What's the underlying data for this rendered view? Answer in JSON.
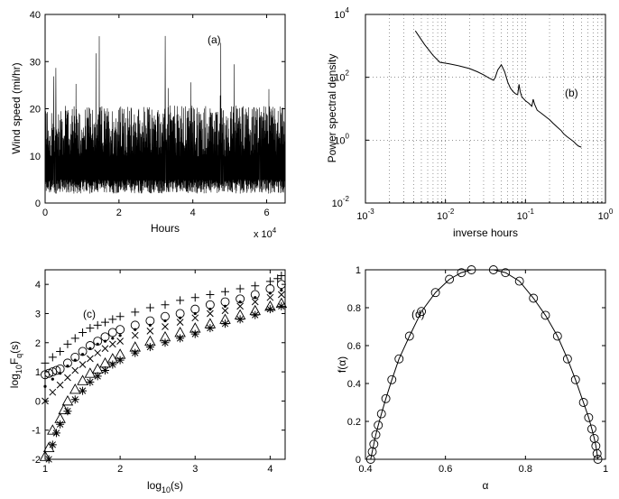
{
  "chart_data": [
    {
      "type": "line",
      "panel_label": "(a)",
      "xlabel": "Hours",
      "ylabel": "Wind speed (mi/hr)",
      "xlim": [
        0,
        6.5
      ],
      "ylim": [
        0,
        40
      ],
      "x_ticks": [
        0,
        2,
        4,
        6
      ],
      "y_ticks": [
        0,
        10,
        20,
        30,
        40
      ],
      "x_multiplier_base": "x 10",
      "x_multiplier_exp": "4",
      "grid": false,
      "color": "#000000",
      "description_values": {
        "typical_low": 2,
        "typical_high": 18,
        "peak": 36
      }
    },
    {
      "type": "line",
      "panel_label": "(b)",
      "xlabel": "inverse hours",
      "ylabel": "Power spectral density",
      "xscale": "log",
      "yscale": "log",
      "xlim": [
        0.001,
        1
      ],
      "ylim": [
        0.01,
        10000
      ],
      "x_ticks": [
        {
          "base": "10",
          "exp": "-3"
        },
        {
          "base": "10",
          "exp": "-2"
        },
        {
          "base": "10",
          "exp": "-1"
        },
        {
          "base": "10",
          "exp": "0"
        }
      ],
      "y_ticks": [
        {
          "base": "10",
          "exp": "-2"
        },
        {
          "base": "10",
          "exp": "0"
        },
        {
          "base": "10",
          "exp": "2"
        },
        {
          "base": "10",
          "exp": "4"
        }
      ],
      "grid": true,
      "color": "#000000",
      "series": [
        {
          "x": [
            0.0042,
            0.0055,
            0.007,
            0.0085,
            0.011,
            0.015,
            0.02,
            0.025,
            0.03,
            0.035,
            0.04,
            0.042,
            0.045,
            0.05,
            0.055,
            0.06,
            0.065,
            0.07,
            0.075,
            0.08,
            0.083,
            0.086,
            0.09,
            0.1,
            0.11,
            0.12,
            0.125,
            0.13,
            0.14,
            0.16,
            0.18,
            0.2,
            0.22,
            0.25,
            0.28,
            0.3,
            0.33,
            0.36,
            0.4,
            0.43,
            0.46,
            0.5
          ],
          "y": [
            3000,
            1100,
            500,
            300,
            270,
            230,
            190,
            150,
            120,
            95,
            80,
            100,
            170,
            250,
            150,
            70,
            45,
            35,
            30,
            28,
            60,
            35,
            24,
            18,
            15,
            12,
            20,
            14,
            9,
            7,
            5.5,
            4.5,
            3.5,
            2.6,
            2.0,
            1.6,
            1.3,
            1.1,
            0.9,
            0.75,
            0.65,
            0.6
          ]
        }
      ]
    },
    {
      "type": "scatter",
      "panel_label": "(c)",
      "xlabel_base": "log",
      "xlabel_sub": "10",
      "xlabel_rest": "(s)",
      "ylabel_base": "log",
      "ylabel_sub": "10",
      "ylabel_mid": "F",
      "ylabel_sub2": "q",
      "ylabel_rest": "(s)",
      "xlim": [
        1,
        4.2
      ],
      "ylim": [
        -2,
        4.5
      ],
      "x_ticks": [
        1,
        2,
        3,
        4
      ],
      "y_ticks": [
        -2,
        -1,
        0,
        1,
        2,
        3,
        4
      ],
      "grid": false,
      "series": [
        {
          "marker": "plus",
          "x": [
            1,
            1.1,
            1.2,
            1.3,
            1.4,
            1.5,
            1.6,
            1.7,
            1.8,
            1.9,
            2.0,
            2.2,
            2.4,
            2.6,
            2.8,
            3.0,
            3.2,
            3.4,
            3.6,
            3.8,
            4.0,
            4.1,
            4.15
          ],
          "y": [
            1.3,
            1.5,
            1.7,
            1.95,
            2.15,
            2.35,
            2.5,
            2.6,
            2.7,
            2.8,
            2.9,
            3.05,
            3.2,
            3.3,
            3.45,
            3.55,
            3.65,
            3.75,
            3.85,
            3.95,
            4.1,
            4.2,
            4.3
          ]
        },
        {
          "marker": "circle",
          "x": [
            1,
            1.05,
            1.1,
            1.15,
            1.2,
            1.3,
            1.4,
            1.5,
            1.6,
            1.7,
            1.8,
            1.9,
            2.0,
            2.2,
            2.4,
            2.6,
            2.8,
            3.0,
            3.2,
            3.4,
            3.6,
            3.8,
            4.0,
            4.15
          ],
          "y": [
            0.9,
            0.95,
            1.0,
            1.05,
            1.1,
            1.3,
            1.5,
            1.7,
            1.9,
            2.05,
            2.2,
            2.35,
            2.45,
            2.6,
            2.75,
            2.9,
            3.0,
            3.15,
            3.3,
            3.4,
            3.5,
            3.65,
            3.85,
            4.0
          ]
        },
        {
          "marker": "dot",
          "x": [
            1,
            1.1,
            1.2,
            1.3,
            1.4,
            1.5,
            1.6,
            1.7,
            1.8,
            1.9,
            2.0,
            2.2,
            2.4,
            2.6,
            2.8,
            3.0,
            3.2,
            3.4,
            3.6,
            3.8,
            4.0,
            4.15
          ],
          "y": [
            0.5,
            0.75,
            0.95,
            1.2,
            1.4,
            1.6,
            1.8,
            1.95,
            2.05,
            2.15,
            2.25,
            2.45,
            2.6,
            2.75,
            2.85,
            3.0,
            3.15,
            3.25,
            3.4,
            3.55,
            3.7,
            3.8
          ]
        },
        {
          "marker": "x",
          "x": [
            1,
            1.1,
            1.2,
            1.3,
            1.4,
            1.5,
            1.6,
            1.7,
            1.8,
            1.9,
            2.0,
            2.2,
            2.4,
            2.6,
            2.8,
            3.0,
            3.2,
            3.4,
            3.6,
            3.8,
            4.0,
            4.15
          ],
          "y": [
            0.0,
            0.3,
            0.55,
            0.8,
            1.05,
            1.25,
            1.45,
            1.65,
            1.8,
            1.95,
            2.05,
            2.25,
            2.4,
            2.55,
            2.7,
            2.85,
            3.0,
            3.1,
            3.25,
            3.4,
            3.55,
            3.65
          ]
        },
        {
          "marker": "triangle",
          "x": [
            1.0,
            1.05,
            1.1,
            1.2,
            1.25,
            1.3,
            1.4,
            1.5,
            1.6,
            1.7,
            1.8,
            1.9,
            2.0,
            2.2,
            2.4,
            2.6,
            2.8,
            3.0,
            3.2,
            3.4,
            3.6,
            3.8,
            4.0,
            4.15
          ],
          "y": [
            -1.9,
            -1.6,
            -1.0,
            -0.6,
            -0.3,
            0.0,
            0.4,
            0.7,
            0.95,
            1.1,
            1.3,
            1.45,
            1.6,
            1.85,
            2.05,
            2.2,
            2.35,
            2.5,
            2.65,
            2.8,
            2.95,
            3.1,
            3.25,
            3.35
          ]
        },
        {
          "marker": "star",
          "x": [
            1.05,
            1.1,
            1.15,
            1.2,
            1.3,
            1.4,
            1.5,
            1.6,
            1.7,
            1.8,
            1.9,
            2.0,
            2.2,
            2.4,
            2.6,
            2.8,
            3.0,
            3.2,
            3.4,
            3.6,
            3.8,
            4.0,
            4.15
          ],
          "y": [
            -2.0,
            -1.5,
            -1.1,
            -0.8,
            -0.35,
            0.05,
            0.35,
            0.65,
            0.85,
            1.05,
            1.25,
            1.4,
            1.65,
            1.85,
            2.0,
            2.15,
            2.3,
            2.5,
            2.65,
            2.8,
            2.95,
            3.15,
            3.25
          ]
        }
      ]
    },
    {
      "type": "line",
      "panel_label": "(d)",
      "xlabel": "α",
      "ylabel": "f(α)",
      "xlim": [
        0.4,
        1.0
      ],
      "ylim": [
        0,
        1
      ],
      "x_ticks": [
        0.4,
        0.6,
        0.8,
        1
      ],
      "y_ticks": [
        0,
        0.2,
        0.4,
        0.6,
        0.8,
        1
      ],
      "grid": false,
      "series": [
        {
          "marker": "circle",
          "x": [
            0.413,
            0.417,
            0.421,
            0.426,
            0.432,
            0.44,
            0.451,
            0.466,
            0.484,
            0.51,
            0.54,
            0.575,
            0.61,
            0.64,
            0.665,
            0.72,
            0.75,
            0.785,
            0.82,
            0.85,
            0.88,
            0.905,
            0.925,
            0.945,
            0.958,
            0.966,
            0.972,
            0.976,
            0.979,
            0.981
          ],
          "y": [
            0.0,
            0.04,
            0.08,
            0.13,
            0.18,
            0.24,
            0.32,
            0.42,
            0.53,
            0.65,
            0.78,
            0.88,
            0.95,
            0.985,
            1.0,
            1.0,
            0.985,
            0.94,
            0.85,
            0.76,
            0.65,
            0.53,
            0.42,
            0.3,
            0.22,
            0.16,
            0.11,
            0.07,
            0.03,
            0.0
          ]
        }
      ]
    }
  ]
}
